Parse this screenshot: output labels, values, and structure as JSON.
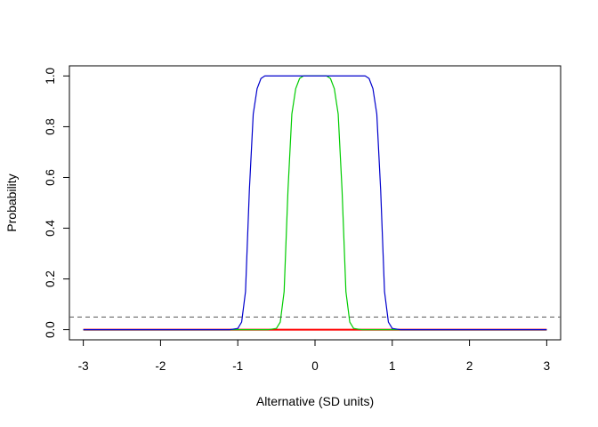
{
  "chart_data": {
    "type": "line",
    "title": "",
    "xlabel": "Alternative (SD units)",
    "ylabel": "Probability",
    "xlim": [
      -3.18,
      3.18
    ],
    "ylim": [
      -0.04,
      1.04
    ],
    "x_ticks": [
      -3,
      -2,
      -1,
      0,
      1,
      2,
      3
    ],
    "y_ticks": [
      0.0,
      0.2,
      0.4,
      0.6,
      0.8,
      1.0
    ],
    "y_tick_labels": [
      "0.0",
      "0.2",
      "0.4",
      "0.6",
      "0.8",
      "1.0"
    ],
    "grid": false,
    "legend": "none",
    "reference_line": {
      "y": 0.05,
      "style": "dashed",
      "color": "#555555"
    },
    "series": [
      {
        "color": "#ff0000",
        "x": [
          -3,
          -2.5,
          -2,
          -1.5,
          -1,
          -0.5,
          0,
          0.5,
          1,
          1.5,
          2,
          2.5,
          3
        ],
        "y": [
          0,
          0,
          0,
          0,
          0,
          0,
          0,
          0,
          0,
          0,
          0,
          0,
          0
        ]
      },
      {
        "color": "#00cc00",
        "x": [
          -3,
          -2,
          -1,
          -0.6,
          -0.5,
          -0.45,
          -0.4,
          -0.35,
          -0.3,
          -0.25,
          -0.2,
          -0.15,
          -0.1,
          0,
          0.1,
          0.15,
          0.2,
          0.25,
          0.3,
          0.35,
          0.4,
          0.45,
          0.5,
          0.6,
          1,
          2,
          3
        ],
        "y": [
          0,
          0,
          0,
          0,
          0.005,
          0.03,
          0.15,
          0.55,
          0.85,
          0.95,
          0.99,
          1.0,
          1.0,
          1.0,
          1.0,
          1.0,
          0.99,
          0.95,
          0.85,
          0.55,
          0.15,
          0.03,
          0.005,
          0,
          0,
          0,
          0
        ]
      },
      {
        "color": "#0000cc",
        "x": [
          -3,
          -2,
          -1.1,
          -1.0,
          -0.95,
          -0.9,
          -0.85,
          -0.8,
          -0.75,
          -0.7,
          -0.65,
          -0.6,
          -0.5,
          0,
          0.5,
          0.6,
          0.65,
          0.7,
          0.75,
          0.8,
          0.85,
          0.9,
          0.95,
          1.0,
          1.1,
          2,
          3
        ],
        "y": [
          0,
          0,
          0,
          0.005,
          0.03,
          0.15,
          0.55,
          0.85,
          0.95,
          0.99,
          1.0,
          1.0,
          1.0,
          1.0,
          1.0,
          1.0,
          1.0,
          0.99,
          0.95,
          0.85,
          0.55,
          0.15,
          0.03,
          0.005,
          0,
          0,
          0
        ]
      }
    ]
  }
}
